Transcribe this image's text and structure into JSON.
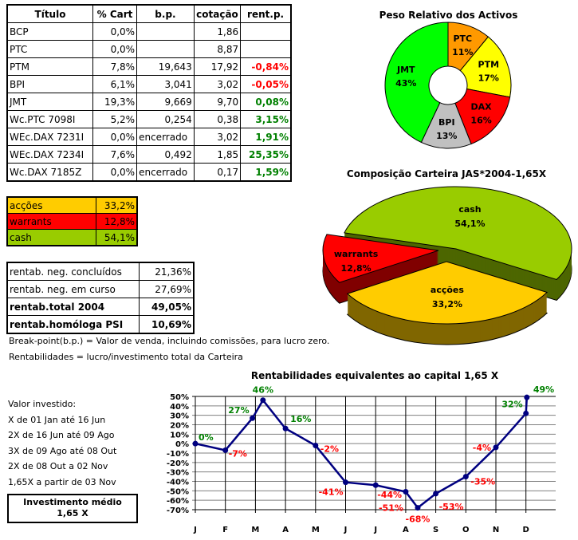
{
  "holdings_table": {
    "headers": [
      "Título",
      "% Cart",
      "b.p.",
      "cotação",
      "rent.p."
    ],
    "rows": [
      [
        "BCP",
        "0,0%",
        "",
        "1,86",
        ""
      ],
      [
        "PTC",
        "0,0%",
        "",
        "8,87",
        ""
      ],
      [
        "PTM",
        "7,8%",
        "19,643",
        "17,92",
        "-0,84%"
      ],
      [
        "BPI",
        "6,1%",
        "3,041",
        "3,02",
        "-0,05%"
      ],
      [
        "JMT",
        "19,3%",
        "9,669",
        "9,70",
        "0,08%"
      ],
      [
        "Wc.PTC 7098I",
        "5,2%",
        "0,254",
        "0,38",
        "3,15%"
      ],
      [
        "WEc.DAX 7231I",
        "0,0%",
        "encerrado",
        "3,02",
        "1,91%"
      ],
      [
        "WEc.DAX 7234I",
        "7,6%",
        "0,492",
        "1,85",
        "25,35%"
      ],
      [
        "Wc.DAX 7185Z",
        "0,0%",
        "encerrado",
        "0,17",
        "1,59%"
      ]
    ]
  },
  "composition_table": {
    "rows": [
      {
        "label": "acções",
        "value": "33,2%",
        "color": "#ffcc00"
      },
      {
        "label": "warrants",
        "value": "12,8%",
        "color": "#ff0000"
      },
      {
        "label": "cash",
        "value": "54,1%",
        "color": "#99cc00"
      }
    ]
  },
  "returns_table": {
    "rows": [
      {
        "label": "rentab. neg. concluídos",
        "value": "21,36%",
        "bold": false
      },
      {
        "label": "rentab. neg. em curso",
        "value": "27,69%",
        "bold": false
      },
      {
        "label": "rentab.total 2004",
        "value": "49,05%",
        "bold": true
      },
      {
        "label": "rentab.homóloga PSI",
        "value": "10,69%",
        "bold": true
      }
    ]
  },
  "notes": [
    "Break-point(b.p.) = Valor de venda, incluindo comissões, para lucro zero.",
    "Rentabilidades = lucro/investimento total da Carteira"
  ],
  "investment": {
    "lines": [
      "Valor investido:",
      "X de 01 Jan até 16 Jun",
      "2X de 16 Jun até 09 Ago",
      "3X de 09 Ago até 08 Out",
      "2X de 08 Out a 02 Nov",
      "1,65X a partir de 03 Nov"
    ],
    "box_title": "Investimento médio",
    "box_value": "1,65  X"
  },
  "chart_data": [
    {
      "type": "pie",
      "variant": "doughnut",
      "title": "Peso Relativo dos Activos",
      "categories": [
        "PTC",
        "PTM",
        "DAX",
        "BPI",
        "JMT"
      ],
      "values": [
        11,
        17,
        16,
        13,
        43
      ],
      "labels": [
        "11%",
        "17%",
        "16%",
        "13%",
        "43%"
      ],
      "colors": [
        "#ff9900",
        "#ffff00",
        "#ff0000",
        "#c0c0c0",
        "#00ff00"
      ]
    },
    {
      "type": "pie",
      "variant": "3d-exploded",
      "title": "Composição Carteira JAS*2004-1,65X",
      "categories": [
        "cash",
        "acções",
        "warrants"
      ],
      "values": [
        54.1,
        33.2,
        12.8
      ],
      "labels": [
        "54,1%",
        "33,2%",
        "12,8%"
      ],
      "colors": [
        "#99cc00",
        "#ffcc00",
        "#ff0000"
      ],
      "side_colors": [
        "#4d6600",
        "#806600",
        "#800000"
      ]
    },
    {
      "type": "line",
      "title": "Rentabilidades equivalentes ao capital 1,65 X",
      "x_ticks": [
        "J",
        "F",
        "M",
        "A",
        "M",
        "J",
        "J",
        "A",
        "S",
        "O",
        "N",
        "D"
      ],
      "y_ticks": [
        "50%",
        "40%",
        "30%",
        "20%",
        "10%",
        "0%",
        "-10%",
        "-20%",
        "-30%",
        "-40%",
        "-50%",
        "-60%",
        "-70%"
      ],
      "ylim": [
        -70,
        50
      ],
      "grid": true,
      "line_color": "#000080",
      "positive_label_color": "#008000",
      "negative_label_color": "#ff0000",
      "points": [
        {
          "month": 0,
          "y": 0,
          "label": "0%"
        },
        {
          "month": 1,
          "y": -7,
          "label": "-7%"
        },
        {
          "month": 1.9,
          "y": 27,
          "label": "27%"
        },
        {
          "month": 2.25,
          "y": 46,
          "label": "46%"
        },
        {
          "month": 3,
          "y": 16,
          "label": "16%"
        },
        {
          "month": 4,
          "y": -2,
          "label": "-2%"
        },
        {
          "month": 5,
          "y": -41,
          "label": "-41%"
        },
        {
          "month": 6,
          "y": -44,
          "label": "-44%"
        },
        {
          "month": 7,
          "y": -51,
          "label": "-51%"
        },
        {
          "month": 7.4,
          "y": -68,
          "label": "-68%"
        },
        {
          "month": 8,
          "y": -53,
          "label": "-53%"
        },
        {
          "month": 9,
          "y": -35,
          "label": "-35%"
        },
        {
          "month": 10,
          "y": -4,
          "label": "-4%"
        },
        {
          "month": 11,
          "y": 32,
          "label": "32%"
        },
        {
          "month": 11.03,
          "y": 49,
          "label": "49%"
        }
      ]
    }
  ]
}
